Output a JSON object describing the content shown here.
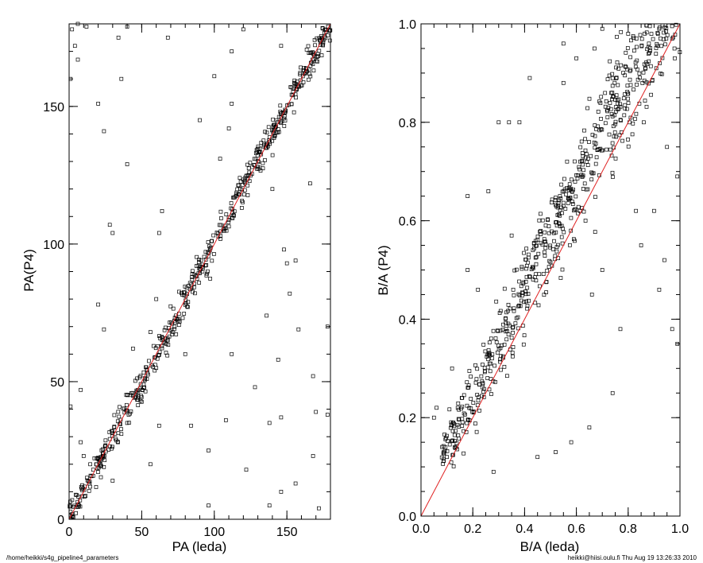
{
  "chart_data": [
    {
      "type": "scatter",
      "xlabel": "PA (leda)",
      "ylabel": "PA(P4)",
      "xlim": [
        0,
        180
      ],
      "ylim": [
        0,
        180
      ],
      "xticks": [
        0,
        50,
        100,
        150
      ],
      "yticks": [
        0,
        50,
        100,
        150
      ],
      "minor_x": 10,
      "minor_y": 10,
      "reference_line": {
        "slope": 1,
        "intercept": 0,
        "color": "#e02020"
      },
      "marker": "open-square",
      "outliers": [
        [
          2,
          178
        ],
        [
          4,
          172
        ],
        [
          6,
          180
        ],
        [
          1,
          160
        ],
        [
          6,
          167
        ],
        [
          12,
          179
        ],
        [
          34,
          175
        ],
        [
          40,
          179
        ],
        [
          68,
          175
        ],
        [
          20,
          151
        ],
        [
          24,
          141
        ],
        [
          36,
          160
        ],
        [
          40,
          129
        ],
        [
          28,
          107
        ],
        [
          30,
          104
        ],
        [
          62,
          104
        ],
        [
          64,
          112
        ],
        [
          20,
          78
        ],
        [
          24,
          69
        ],
        [
          8,
          47
        ],
        [
          1,
          41
        ],
        [
          8,
          28
        ],
        [
          10,
          23
        ],
        [
          14,
          13
        ],
        [
          40,
          35
        ],
        [
          62,
          34
        ],
        [
          56,
          20
        ],
        [
          84,
          34
        ],
        [
          96,
          25
        ],
        [
          108,
          36
        ],
        [
          122,
          18
        ],
        [
          112,
          60
        ],
        [
          128,
          48
        ],
        [
          146,
          37
        ],
        [
          170,
          39
        ],
        [
          168,
          23
        ],
        [
          156,
          13
        ],
        [
          146,
          10
        ],
        [
          138,
          5
        ],
        [
          172,
          4
        ],
        [
          178,
          38
        ],
        [
          144,
          58
        ],
        [
          156,
          94
        ],
        [
          148,
          98
        ],
        [
          136,
          74
        ],
        [
          152,
          82
        ],
        [
          178,
          70
        ],
        [
          158,
          69
        ],
        [
          168,
          52
        ],
        [
          100,
          161
        ],
        [
          112,
          170
        ],
        [
          146,
          172
        ],
        [
          90,
          145
        ],
        [
          104,
          131
        ],
        [
          60,
          80
        ],
        [
          44,
          62
        ],
        [
          56,
          68
        ],
        [
          80,
          60
        ],
        [
          140,
          120
        ],
        [
          166,
          122
        ],
        [
          138,
          35
        ],
        [
          150,
          93
        ],
        [
          110,
          142
        ],
        [
          96,
          5
        ],
        [
          120,
          178
        ],
        [
          112,
          151
        ],
        [
          36,
          31
        ],
        [
          30,
          14
        ]
      ]
    },
    {
      "type": "scatter",
      "xlabel": "B/A (leda)",
      "ylabel": "B/A (P4)",
      "xlim": [
        0,
        1
      ],
      "ylim": [
        0,
        1
      ],
      "xticks": [
        0.0,
        0.2,
        0.4,
        0.6,
        0.8,
        1.0
      ],
      "yticks": [
        0.0,
        0.2,
        0.4,
        0.6,
        0.8,
        1.0
      ],
      "minor_x": 0.05,
      "minor_y": 0.05,
      "reference_line": {
        "slope": 1,
        "intercept": 0,
        "color": "#e02020"
      },
      "marker": "open-square",
      "extra_points": [
        [
          0.06,
          0.22
        ],
        [
          0.05,
          0.2
        ],
        [
          0.1,
          0.12
        ],
        [
          0.13,
          0.14
        ],
        [
          0.12,
          0.3
        ],
        [
          0.18,
          0.5
        ],
        [
          0.26,
          0.66
        ],
        [
          0.22,
          0.46
        ],
        [
          0.34,
          0.8
        ],
        [
          0.3,
          0.8
        ],
        [
          0.38,
          0.8
        ],
        [
          0.55,
          0.96
        ],
        [
          0.6,
          0.93
        ],
        [
          0.67,
          0.95
        ],
        [
          0.7,
          0.99
        ],
        [
          0.8,
          0.98
        ],
        [
          0.88,
          0.96
        ],
        [
          0.92,
          0.99
        ],
        [
          0.97,
          0.97
        ],
        [
          0.98,
          0.93
        ],
        [
          0.99,
          0.69
        ],
        [
          0.97,
          0.38
        ],
        [
          0.99,
          0.35
        ],
        [
          0.94,
          0.52
        ],
        [
          0.92,
          0.46
        ],
        [
          0.85,
          0.55
        ],
        [
          0.83,
          0.62
        ],
        [
          0.74,
          0.25
        ],
        [
          0.77,
          0.38
        ],
        [
          0.65,
          0.18
        ],
        [
          0.58,
          0.15
        ],
        [
          0.52,
          0.13
        ],
        [
          0.45,
          0.12
        ],
        [
          0.66,
          0.45
        ],
        [
          0.7,
          0.5
        ],
        [
          0.18,
          0.65
        ],
        [
          0.28,
          0.09
        ],
        [
          0.35,
          0.57
        ],
        [
          0.42,
          0.89
        ],
        [
          0.55,
          0.88
        ],
        [
          0.64,
          0.72
        ],
        [
          0.9,
          0.62
        ],
        [
          0.95,
          0.75
        ],
        [
          0.86,
          0.8
        ]
      ]
    }
  ],
  "footer": {
    "left": "/home/heikki/s4g_pipeline4_parameters",
    "right": "heikki@hiisi.oulu.fi  Thu Aug 19 13:26:33 2010"
  }
}
